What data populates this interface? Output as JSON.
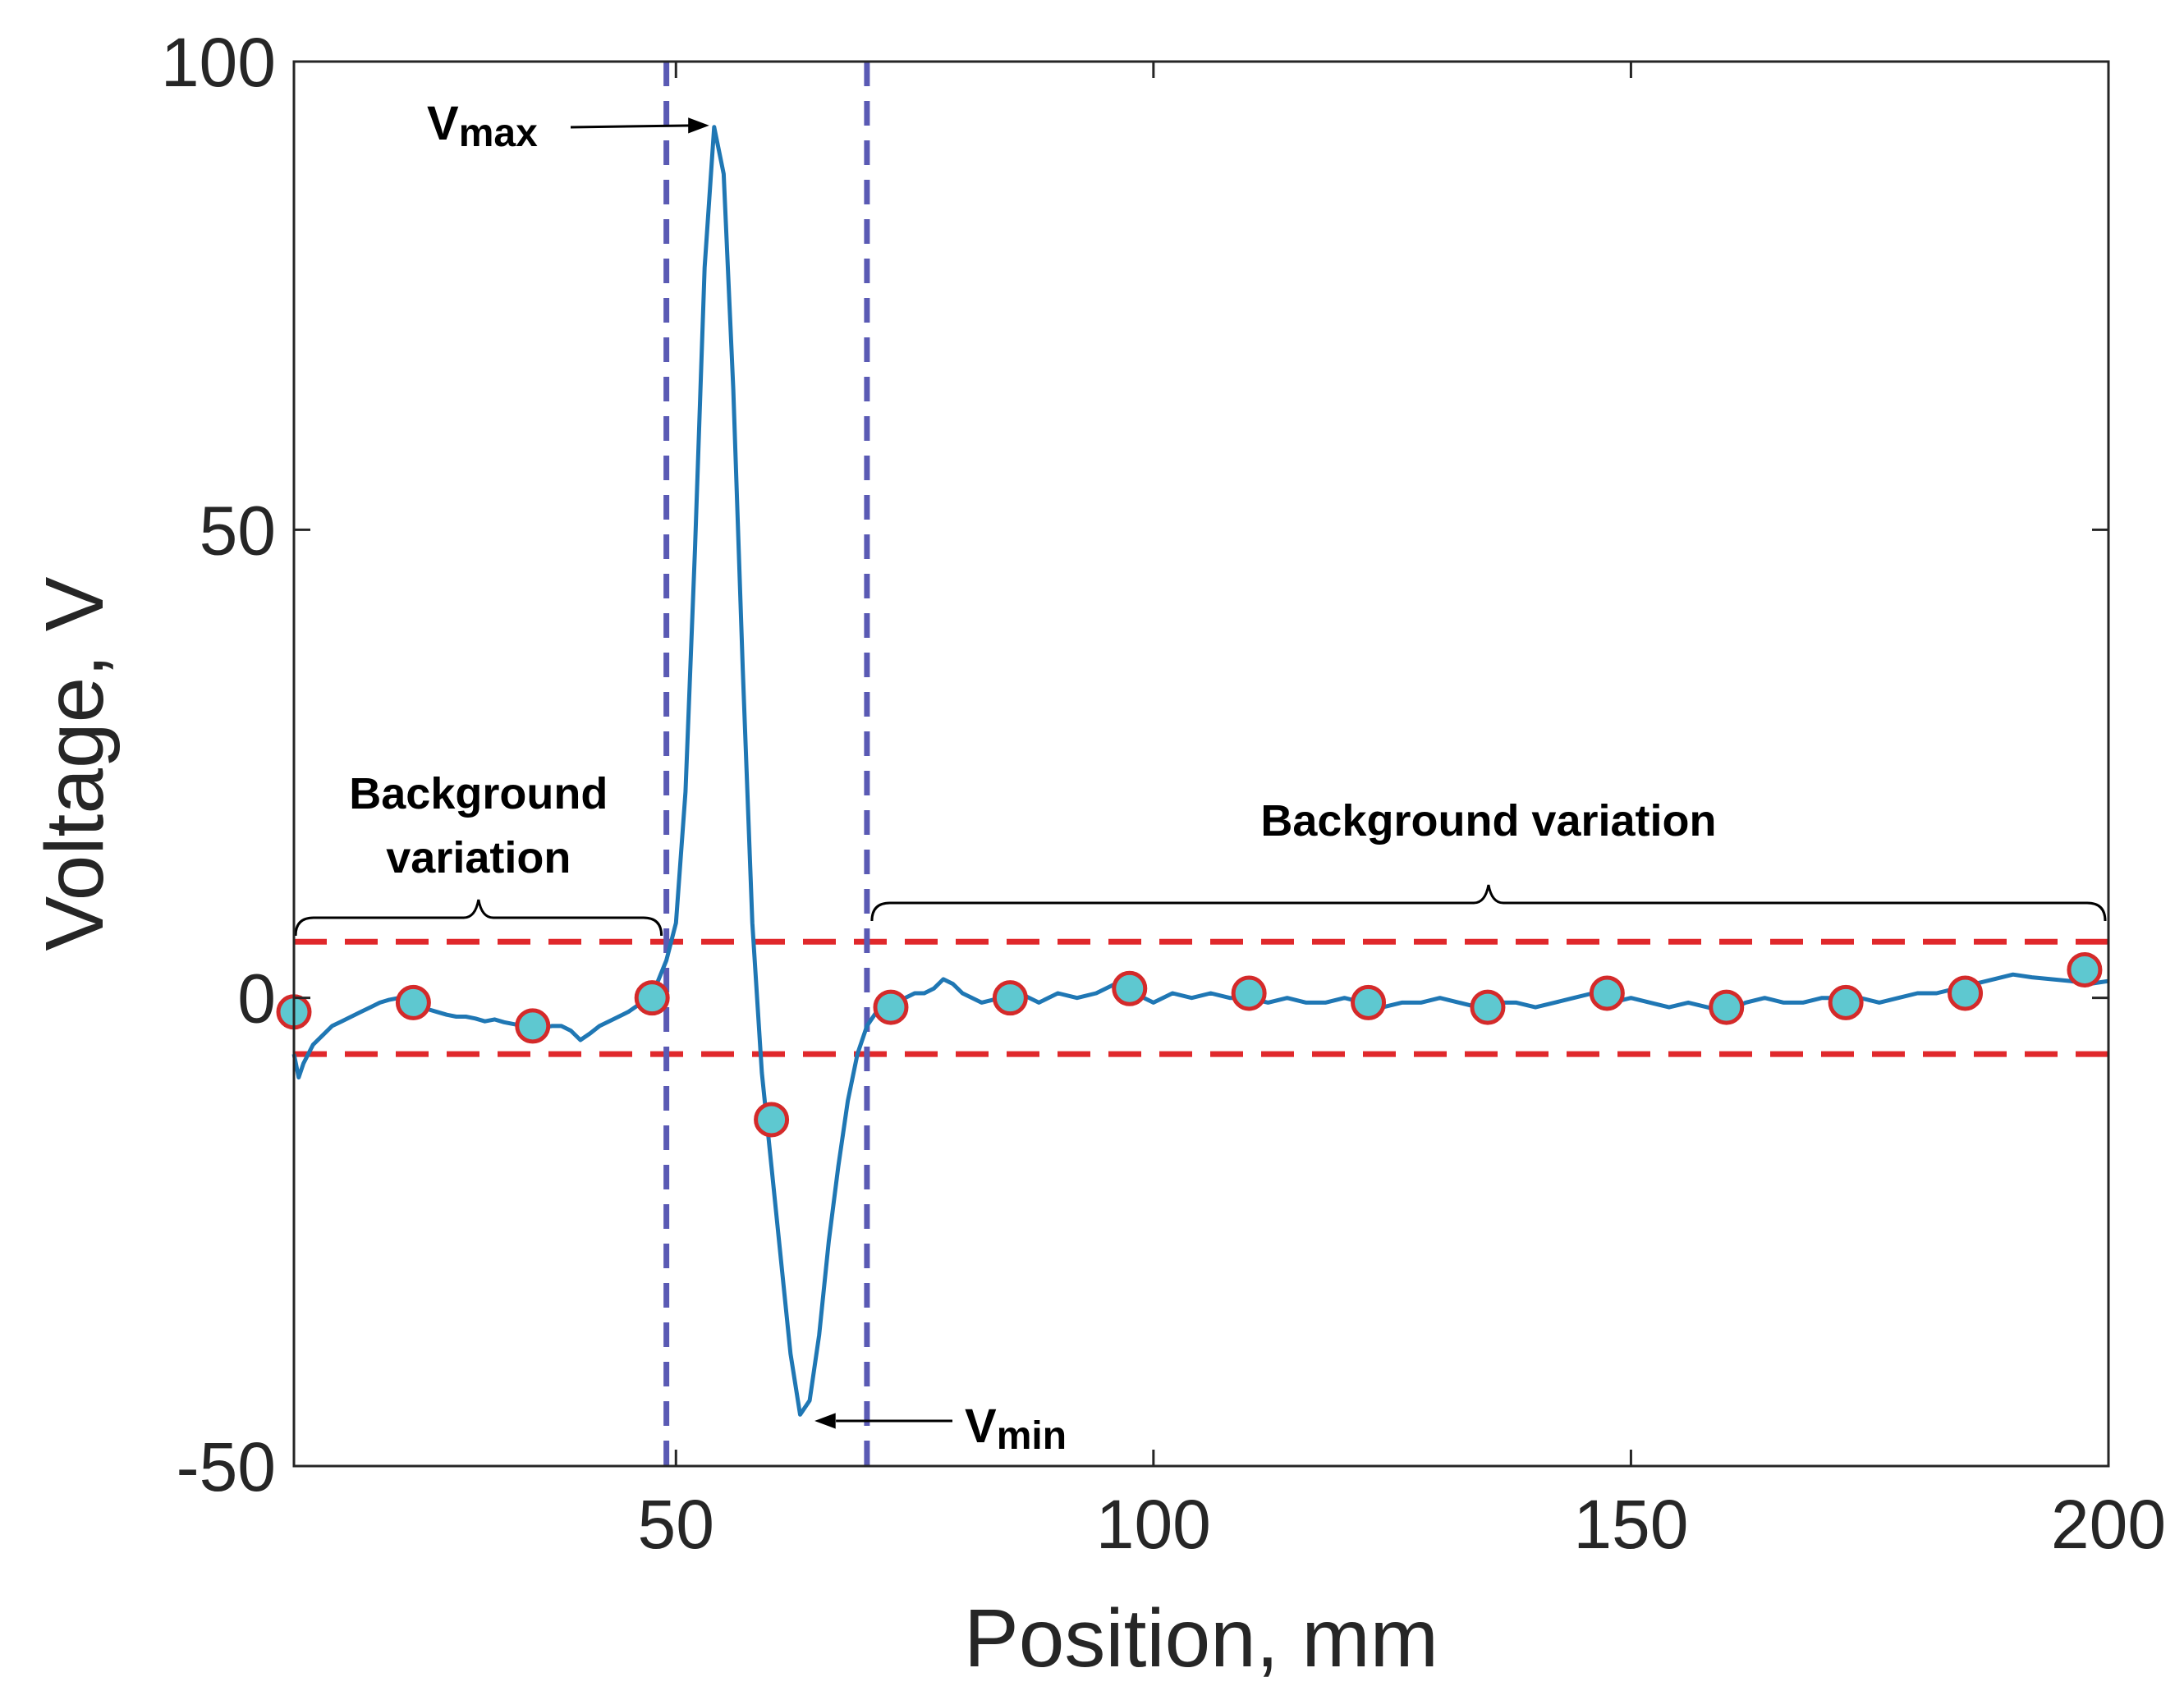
{
  "chart_data": {
    "type": "line",
    "xlabel": "Position, mm",
    "ylabel": "Voltage, V",
    "xlim": [
      10,
      200
    ],
    "ylim": [
      -50,
      100
    ],
    "xticks": [
      50,
      100,
      150,
      200
    ],
    "yticks": [
      -50,
      0,
      50,
      100
    ],
    "xtick_labels": [
      "50",
      "100",
      "150",
      "200"
    ],
    "ytick_labels": [
      "-50",
      "0",
      "50",
      "100"
    ],
    "grid": false,
    "legend": "none",
    "colors": {
      "signal": "#1f77b4",
      "threshold": "#e0282b",
      "boundary": "#5a5ab4",
      "marker_fill": "#5ec8d0",
      "marker_edge": "#d42a2a",
      "axes": "#262626"
    },
    "series": [
      {
        "style": "line",
        "x": [
          10,
          10.5,
          11,
          12,
          13,
          14,
          15,
          16,
          17,
          18,
          19,
          20,
          21,
          22,
          23,
          24,
          25,
          26,
          27,
          28,
          29,
          30,
          31,
          32,
          33,
          34,
          35,
          36,
          37,
          38,
          39,
          40,
          41,
          42,
          43,
          44,
          45,
          46,
          47,
          48,
          49,
          50,
          51,
          52,
          53,
          54,
          55,
          56,
          57,
          58,
          59,
          60,
          61,
          62,
          63,
          64,
          65,
          66,
          67,
          68,
          69,
          70,
          71,
          72,
          73,
          74,
          75,
          76,
          77,
          78,
          79,
          80,
          82,
          84,
          86,
          88,
          90,
          92,
          94,
          96,
          98,
          100,
          102,
          104,
          106,
          108,
          110,
          112,
          114,
          116,
          118,
          120,
          122,
          124,
          126,
          128,
          130,
          132,
          134,
          136,
          138,
          140,
          142,
          144,
          146,
          148,
          150,
          152,
          154,
          156,
          158,
          160,
          162,
          164,
          166,
          168,
          170,
          172,
          174,
          176,
          178,
          180,
          182,
          184,
          186,
          188,
          190,
          192,
          194,
          196,
          198,
          200
        ],
        "y": [
          -6,
          -8.5,
          -7,
          -5,
          -4,
          -3,
          -2.5,
          -2,
          -1.5,
          -1,
          -0.5,
          -0.2,
          0,
          -0.3,
          -0.8,
          -1.2,
          -1.5,
          -1.8,
          -2,
          -2,
          -2.2,
          -2.5,
          -2.3,
          -2.6,
          -2.8,
          -3,
          -3.2,
          -3.2,
          -3,
          -3,
          -3.5,
          -4.5,
          -3.8,
          -3,
          -2.5,
          -2,
          -1.5,
          -0.8,
          0,
          1.5,
          4,
          8,
          22,
          48,
          78,
          93,
          88,
          65,
          35,
          8,
          -8,
          -18,
          -28,
          -38,
          -44.5,
          -43,
          -36,
          -26,
          -18,
          -11,
          -6,
          -3,
          -1.5,
          -0.5,
          0,
          0,
          0.5,
          0.5,
          1,
          2,
          1.5,
          0.5,
          -0.5,
          0,
          0.5,
          -0.5,
          0.5,
          0,
          0.5,
          1.5,
          0.5,
          -0.5,
          0.5,
          0,
          0.5,
          0,
          0,
          -0.5,
          0,
          -0.5,
          -0.5,
          0,
          -0.5,
          -1,
          -0.5,
          -0.5,
          0,
          -0.5,
          -1,
          -0.5,
          -0.5,
          -1,
          -0.5,
          0,
          0.5,
          -0.5,
          0,
          -0.5,
          -1,
          -0.5,
          -1,
          -1.5,
          -0.5,
          0,
          -0.5,
          -0.5,
          0,
          0,
          0,
          -0.5,
          0,
          0.5,
          0.5,
          1,
          1.5,
          2,
          2.5,
          2.2,
          2,
          1.8,
          1.5,
          1.8
        ]
      },
      {
        "style": "markers",
        "x": [
          10,
          22.5,
          35,
          47.5,
          60,
          72.5,
          85,
          97.5,
          110,
          122.5,
          135,
          147.5,
          160,
          172.5,
          185,
          197.5
        ],
        "y": [
          -1.5,
          -0.5,
          -3,
          0,
          -13,
          -1,
          0,
          1,
          0.5,
          -0.5,
          -1,
          0.5,
          -1,
          -0.5,
          0.5,
          3
        ]
      }
    ],
    "reference_lines": {
      "horizontal_y": [
        6,
        -6
      ],
      "vertical_x": [
        49,
        70
      ]
    },
    "annotations": {
      "vmax": {
        "label_main": "V",
        "label_sub": "max",
        "x": 54,
        "y": 93
      },
      "vmin": {
        "label_main": "V",
        "label_sub": "min",
        "x": 64,
        "y": -45
      },
      "bg_left": {
        "lines": [
          "Background",
          "variation"
        ],
        "x_from": 10,
        "x_to": 49
      },
      "bg_right": {
        "lines": [
          "Background variation"
        ],
        "x_from": 70,
        "x_to": 200
      }
    }
  }
}
